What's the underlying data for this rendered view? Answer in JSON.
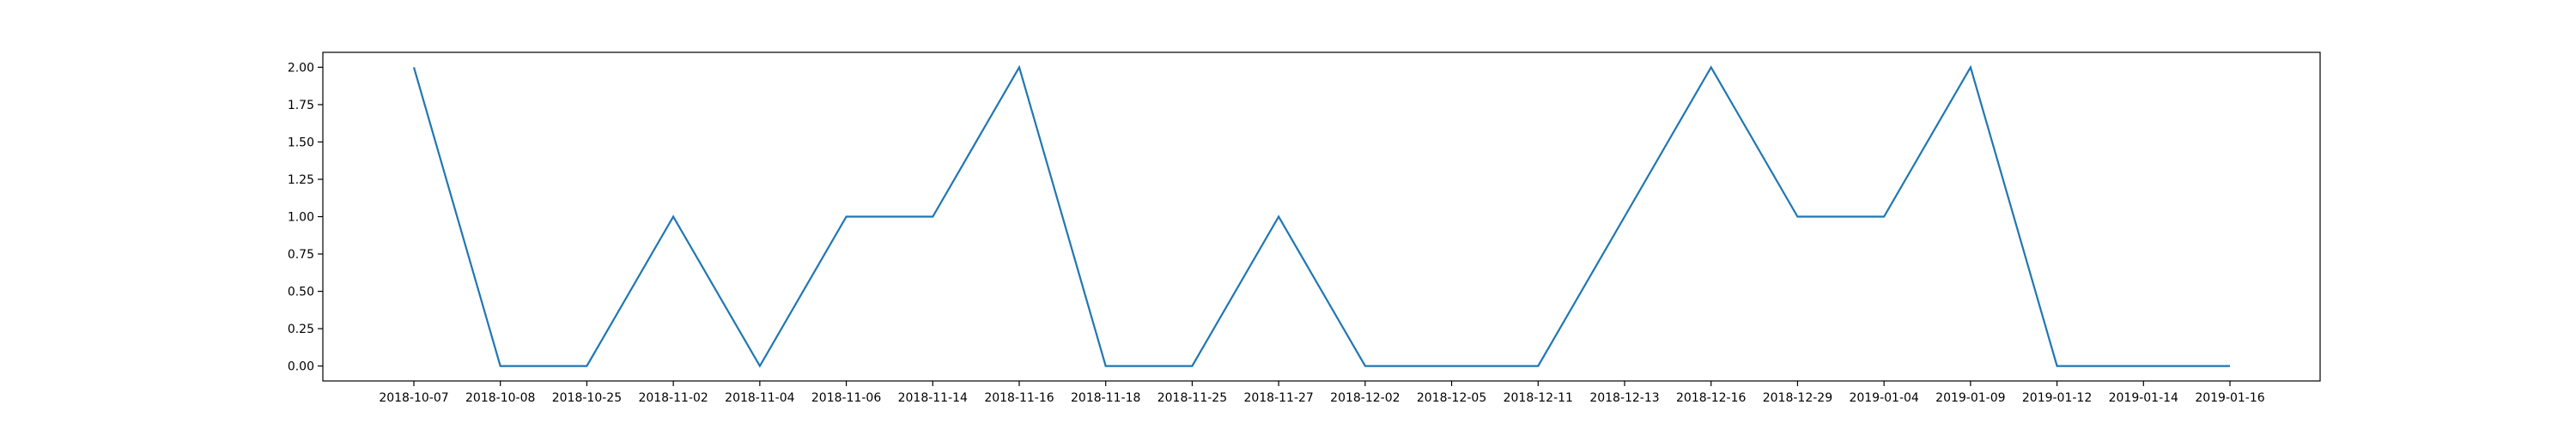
{
  "chart_data": {
    "type": "line",
    "title": "",
    "xlabel": "",
    "ylabel": "",
    "categories": [
      "2018-10-07",
      "2018-10-08",
      "2018-10-25",
      "2018-11-02",
      "2018-11-04",
      "2018-11-06",
      "2018-11-14",
      "2018-11-16",
      "2018-11-18",
      "2018-11-25",
      "2018-11-27",
      "2018-12-02",
      "2018-12-05",
      "2018-12-11",
      "2018-12-13",
      "2018-12-16",
      "2018-12-29",
      "2019-01-04",
      "2019-01-09",
      "2019-01-12",
      "2019-01-14",
      "2019-01-16"
    ],
    "series": [
      {
        "values": [
          2,
          0,
          0,
          1,
          0,
          1,
          1,
          2,
          0,
          0,
          1,
          0,
          0,
          0,
          1,
          2,
          1,
          1,
          2,
          0,
          0,
          0
        ]
      }
    ],
    "ylim": [
      -0.1,
      2.1
    ],
    "yticks": [
      "0.00",
      "0.25",
      "0.50",
      "0.75",
      "1.00",
      "1.25",
      "1.50",
      "1.75",
      "2.00"
    ],
    "line_color": "#1f77b4",
    "grid": false,
    "legend": "none"
  }
}
